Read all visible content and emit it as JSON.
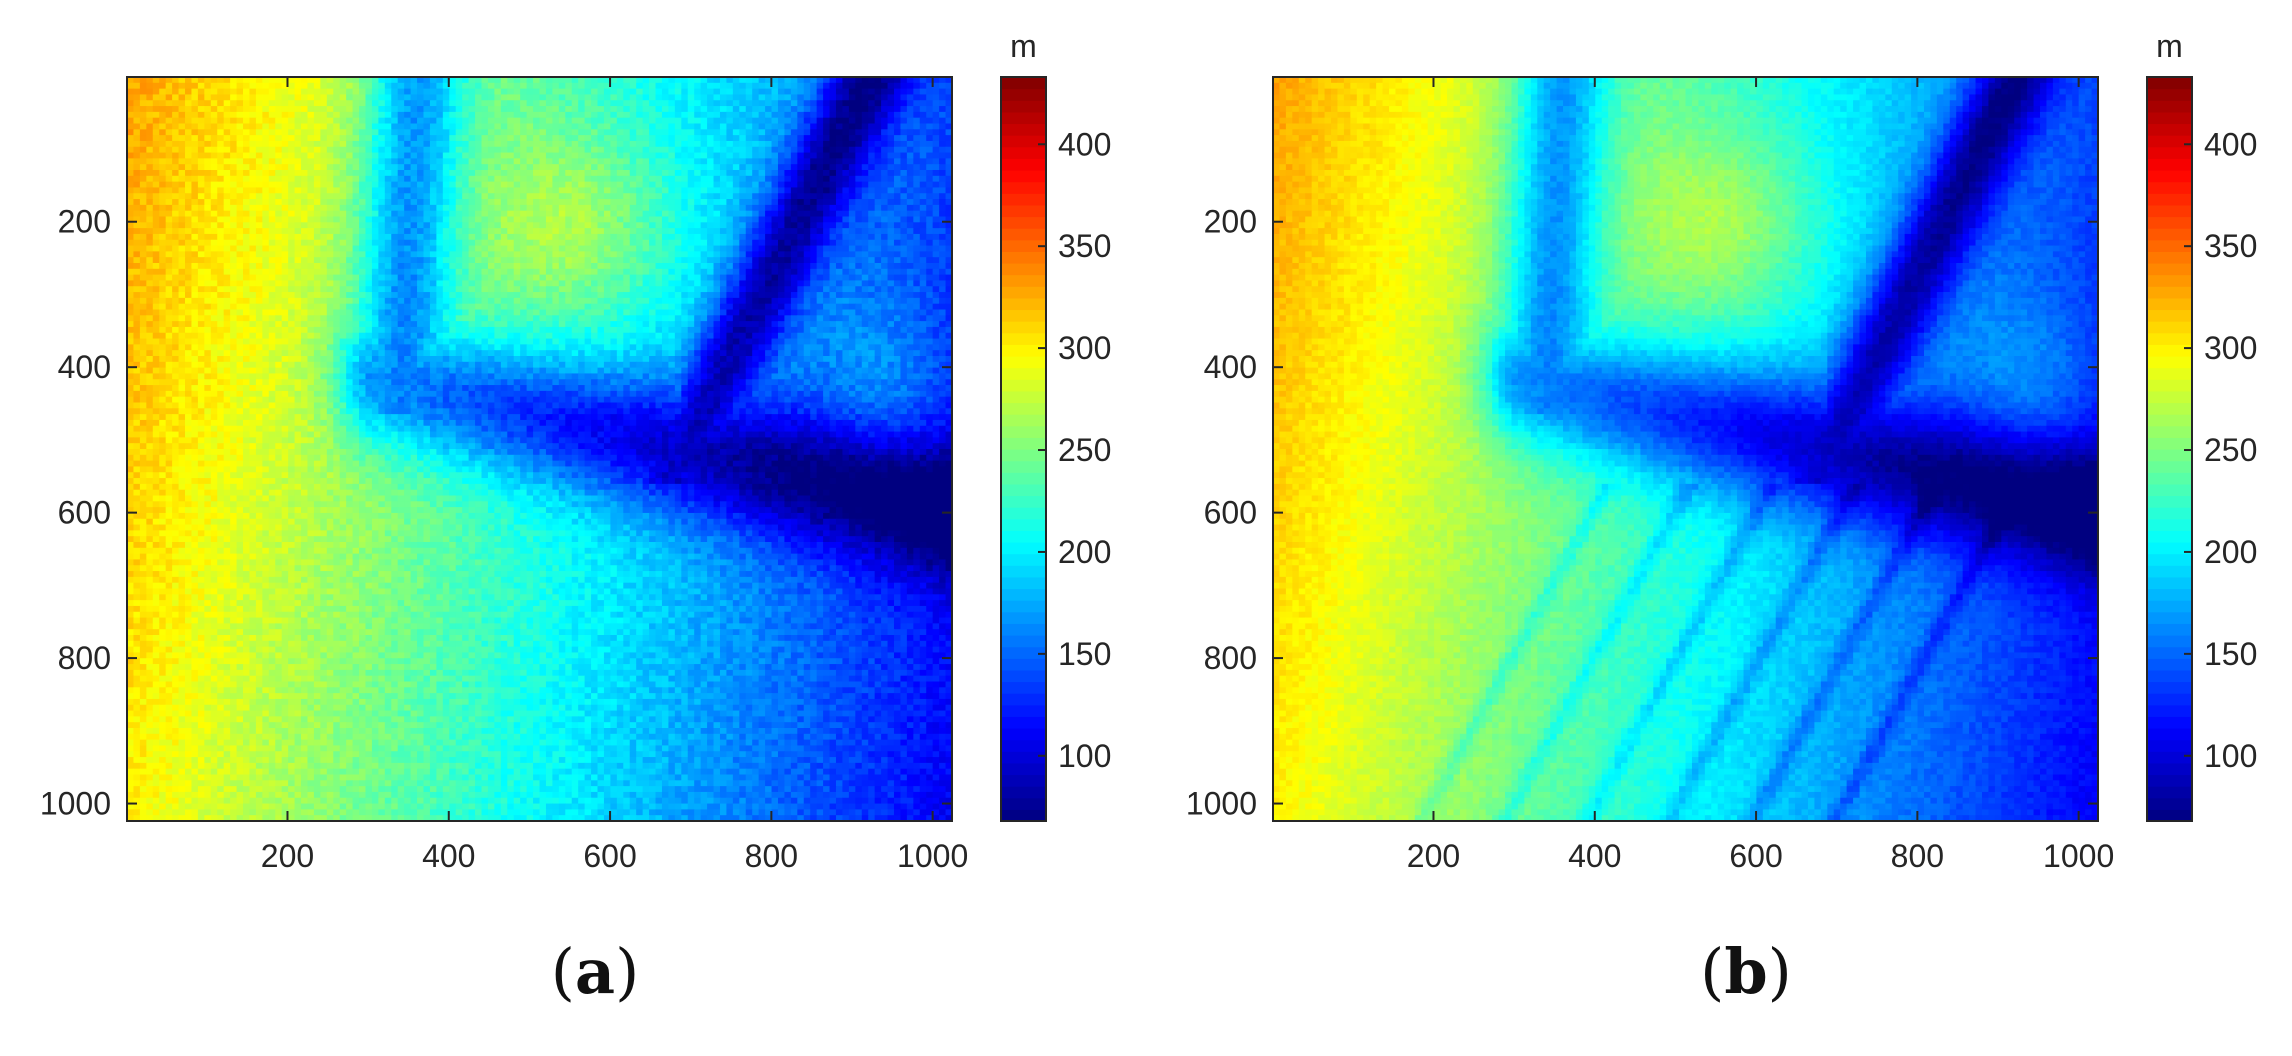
{
  "colors": {
    "axis": "#262626",
    "colormap": "jet"
  },
  "chart_data": [
    {
      "type": "heatmap",
      "panel_label_open": "(",
      "panel_label": "a",
      "panel_label_close": ")",
      "x_ticks": [
        "200",
        "400",
        "600",
        "800",
        "1000"
      ],
      "x_tick_values": [
        200,
        400,
        600,
        800,
        1000
      ],
      "y_ticks": [
        "200",
        "400",
        "600",
        "800",
        "1000"
      ],
      "y_tick_values": [
        200,
        400,
        600,
        800,
        1000
      ],
      "xlim": [
        1,
        1024
      ],
      "ylim": [
        1,
        1024
      ],
      "y_reversed": true,
      "colorbar": {
        "unit": "m",
        "ticks": [
          "100",
          "150",
          "200",
          "250",
          "300",
          "350",
          "400"
        ],
        "tick_values": [
          100,
          150,
          200,
          250,
          300,
          350,
          400
        ],
        "range": [
          68,
          433
        ]
      },
      "surface": "rough"
    },
    {
      "type": "heatmap",
      "panel_label_open": "(",
      "panel_label": "b",
      "panel_label_close": ")",
      "x_ticks": [
        "200",
        "400",
        "600",
        "800",
        "1000"
      ],
      "x_tick_values": [
        200,
        400,
        600,
        800,
        1000
      ],
      "y_ticks": [
        "200",
        "400",
        "600",
        "800",
        "1000"
      ],
      "y_tick_values": [
        200,
        400,
        600,
        800,
        1000
      ],
      "xlim": [
        1,
        1024
      ],
      "ylim": [
        1,
        1024
      ],
      "y_reversed": true,
      "colorbar": {
        "unit": "m",
        "ticks": [
          "100",
          "150",
          "200",
          "250",
          "300",
          "350",
          "400"
        ],
        "tick_values": [
          100,
          150,
          200,
          250,
          300,
          350,
          400
        ],
        "range": [
          68,
          433
        ]
      },
      "surface": "smooth"
    }
  ]
}
